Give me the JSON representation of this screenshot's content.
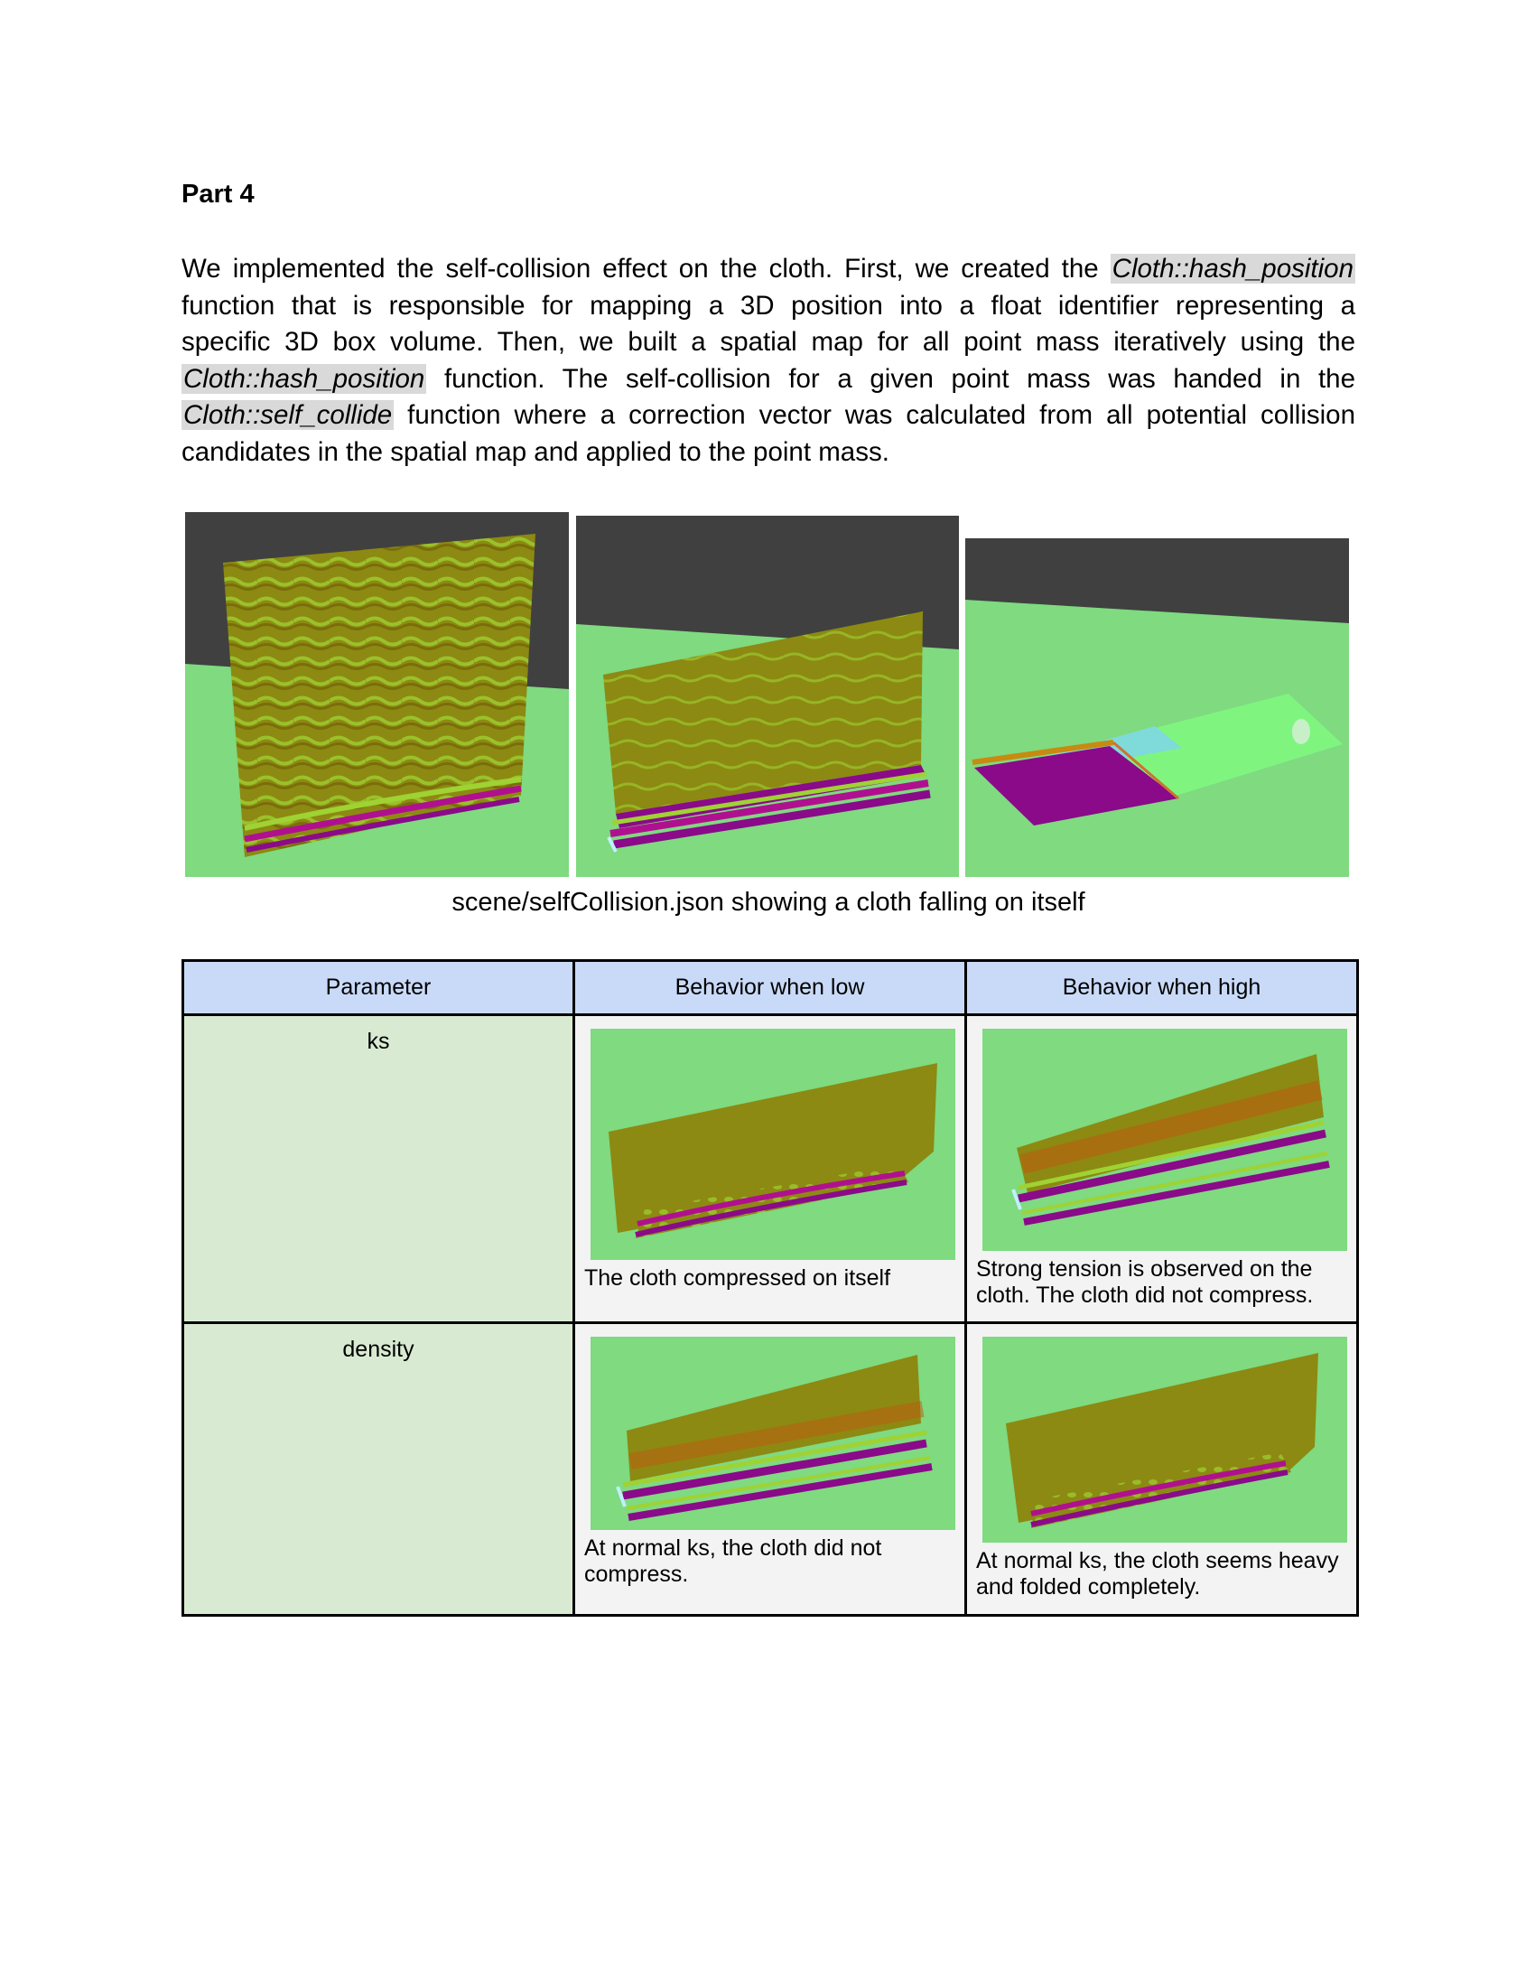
{
  "heading": "Part 4",
  "intro": {
    "l1_a": "We implemented the self-collision effect on the cloth. First, we created the ",
    "fn_hash": "Cloth::hash_position",
    "l2": "function that is responsible for mapping a 3D position into a float identifier representing a",
    "l3": "specific 3D box volume. Then, we built a spatial map for all point mass iteratively using the",
    "l4_b": " function. The self-collision for a given point mass was handed in the",
    "fn_collide": "Cloth::self_collide",
    "l5_b": " function where a correction vector was calculated from all potential collision",
    "l6": "candidates in the spatial map and applied to the point mass."
  },
  "figure_caption": "scene/selfCollision.json showing a cloth falling on itself",
  "table": {
    "headers": [
      "Parameter",
      "Behavior when low",
      "Behavior when high"
    ],
    "rows": [
      {
        "param": "ks",
        "low_text": "The cloth compressed on itself",
        "high_text": "Strong tension is observed on the cloth. The cloth did not compress."
      },
      {
        "param": "density",
        "low_text": "At normal ks, the cloth did not compress.",
        "high_text": "At normal ks, the cloth seems heavy and folded completely."
      }
    ]
  },
  "colors": {
    "floor_green": "#7fda80",
    "background_gray": "#404040",
    "cloth_olive": "#8a8a10",
    "fold_purple": "#8a0a8a",
    "header_blue": "#c9daf8",
    "param_green": "#d9ead3",
    "code_highlight": "#d9d9d9"
  }
}
